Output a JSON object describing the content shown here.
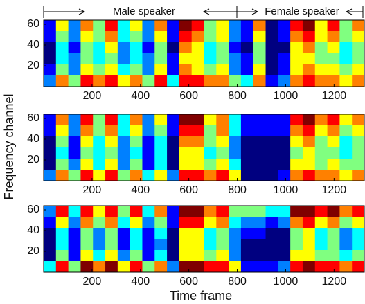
{
  "labels": {
    "xlabel": "Time frame",
    "ylabel": "Frequency channel",
    "annotations": [
      "Male speaker",
      "Female speaker"
    ]
  },
  "chart_data": [
    {
      "type": "heatmap",
      "xlim": [
        0,
        1325
      ],
      "ylim": [
        0,
        64
      ],
      "xticks": [
        200,
        400,
        600,
        800,
        1000,
        1200
      ],
      "yticks": [
        20,
        40,
        60
      ],
      "z": [
        [
          2,
          6,
          3,
          7,
          5,
          8,
          4,
          6,
          3,
          7,
          2,
          9,
          8,
          5,
          6,
          3,
          2,
          7,
          1,
          2,
          8,
          9,
          6,
          8,
          5,
          7
        ],
        [
          2,
          5,
          3,
          6,
          5,
          7,
          4,
          5,
          3,
          6,
          2,
          8,
          7,
          5,
          6,
          3,
          2,
          6,
          1,
          2,
          7,
          8,
          6,
          7,
          5,
          6
        ],
        [
          1,
          4,
          2,
          5,
          4,
          6,
          3,
          4,
          2,
          5,
          1,
          7,
          6,
          4,
          5,
          2,
          1,
          5,
          1,
          1,
          6,
          7,
          5,
          6,
          4,
          5
        ],
        [
          1,
          4,
          3,
          5,
          4,
          5,
          3,
          4,
          3,
          5,
          2,
          6,
          6,
          4,
          5,
          3,
          2,
          5,
          1,
          2,
          6,
          6,
          5,
          5,
          4,
          5
        ],
        [
          2,
          5,
          3,
          6,
          5,
          6,
          4,
          5,
          3,
          6,
          2,
          7,
          6,
          5,
          6,
          3,
          2,
          6,
          1,
          2,
          6,
          7,
          6,
          6,
          5,
          6
        ],
        [
          3,
          7,
          5,
          8,
          7,
          8,
          6,
          7,
          5,
          8,
          4,
          8,
          8,
          7,
          7,
          5,
          4,
          7,
          2,
          3,
          7,
          8,
          7,
          7,
          6,
          7
        ]
      ]
    },
    {
      "type": "heatmap",
      "xlim": [
        0,
        1325
      ],
      "ylim": [
        0,
        64
      ],
      "xticks": [
        200,
        400,
        600,
        800,
        1000,
        1200
      ],
      "yticks": [
        20,
        40,
        60
      ],
      "z": [
        [
          2,
          7,
          3,
          8,
          5,
          8,
          4,
          7,
          3,
          6,
          2,
          9,
          9,
          6,
          7,
          4,
          2,
          2,
          2,
          2,
          8,
          9,
          7,
          8,
          6,
          7
        ],
        [
          2,
          6,
          3,
          7,
          5,
          7,
          4,
          6,
          3,
          5,
          2,
          8,
          8,
          5,
          7,
          4,
          2,
          2,
          2,
          2,
          7,
          8,
          6,
          7,
          5,
          6
        ],
        [
          1,
          5,
          2,
          6,
          4,
          6,
          3,
          5,
          2,
          4,
          1,
          7,
          7,
          5,
          6,
          3,
          1,
          1,
          1,
          1,
          6,
          7,
          5,
          6,
          4,
          5
        ],
        [
          1,
          4,
          2,
          5,
          4,
          5,
          3,
          4,
          2,
          4,
          1,
          6,
          6,
          4,
          5,
          3,
          1,
          1,
          1,
          1,
          5,
          6,
          5,
          5,
          4,
          5
        ],
        [
          1,
          5,
          3,
          6,
          4,
          6,
          3,
          5,
          2,
          4,
          1,
          6,
          6,
          5,
          6,
          4,
          1,
          1,
          1,
          1,
          6,
          6,
          5,
          6,
          5,
          5
        ],
        [
          3,
          7,
          5,
          8,
          6,
          8,
          5,
          7,
          4,
          6,
          3,
          8,
          8,
          7,
          8,
          6,
          1,
          1,
          1,
          2,
          7,
          8,
          7,
          7,
          6,
          7
        ]
      ]
    },
    {
      "type": "heatmap",
      "xlim": [
        0,
        1325
      ],
      "ylim": [
        0,
        64
      ],
      "xticks": [
        200,
        400,
        600,
        800,
        1000,
        1200
      ],
      "yticks": [
        20,
        40,
        60
      ],
      "z": [
        [
          3,
          8,
          4,
          8,
          6,
          8,
          5,
          8,
          4,
          7,
          2,
          9,
          9,
          7,
          8,
          5,
          5,
          5,
          4,
          4,
          9,
          9,
          8,
          9,
          7,
          8
        ],
        [
          2,
          6,
          3,
          7,
          5,
          7,
          4,
          6,
          3,
          5,
          2,
          8,
          8,
          6,
          7,
          4,
          3,
          3,
          2,
          3,
          7,
          8,
          6,
          7,
          5,
          6
        ],
        [
          1,
          4,
          2,
          5,
          3,
          5,
          2,
          4,
          2,
          4,
          1,
          6,
          6,
          4,
          5,
          3,
          2,
          2,
          1,
          1,
          5,
          6,
          4,
          5,
          3,
          4
        ],
        [
          1,
          4,
          2,
          5,
          3,
          5,
          2,
          4,
          2,
          3,
          1,
          6,
          6,
          4,
          5,
          3,
          1,
          1,
          1,
          1,
          5,
          6,
          4,
          5,
          3,
          4
        ],
        [
          1,
          5,
          2,
          6,
          4,
          6,
          3,
          5,
          2,
          4,
          1,
          6,
          6,
          5,
          6,
          3,
          1,
          1,
          1,
          1,
          6,
          6,
          5,
          5,
          4,
          5
        ],
        [
          4,
          8,
          5,
          9,
          7,
          9,
          6,
          8,
          5,
          7,
          3,
          9,
          9,
          8,
          8,
          6,
          2,
          2,
          2,
          3,
          8,
          9,
          8,
          8,
          7,
          8
        ]
      ]
    }
  ]
}
